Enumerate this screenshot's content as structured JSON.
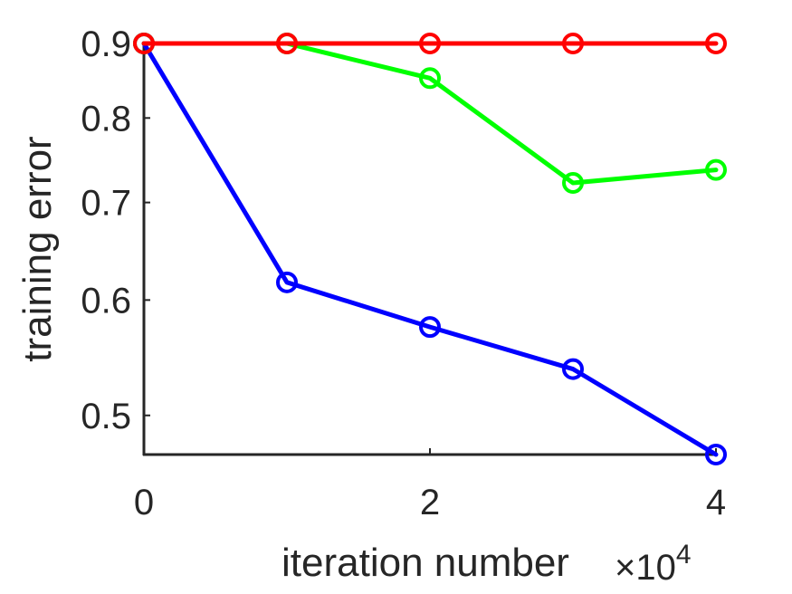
{
  "chart_data": {
    "type": "line",
    "xlabel": "iteration number",
    "ylabel": "training error",
    "x_exponent": {
      "multiplier": "×10",
      "power": "4"
    },
    "x": [
      0,
      1,
      2,
      3,
      4
    ],
    "xlim": [
      0,
      4
    ],
    "ylim": [
      0.47,
      0.9
    ],
    "yscale": "log",
    "x_ticks": [
      0,
      2,
      4
    ],
    "x_tick_labels": [
      "0",
      "2",
      "4"
    ],
    "y_ticks": [
      0.5,
      0.6,
      0.7,
      0.8,
      0.9
    ],
    "y_tick_labels": [
      "0.5",
      "0.6",
      "0.7",
      "0.8",
      "0.9"
    ],
    "grid": false,
    "box": false,
    "marker": "circle",
    "series": [
      {
        "color": "#0000ff",
        "values": [
          0.9,
          0.617,
          0.575,
          0.538,
          0.47
        ]
      },
      {
        "color": "#00ff00",
        "values": [
          0.9,
          0.9,
          0.852,
          0.722,
          0.737
        ]
      },
      {
        "color": "#ff0000",
        "values": [
          0.9,
          0.9,
          0.9,
          0.9,
          0.9
        ]
      }
    ]
  }
}
